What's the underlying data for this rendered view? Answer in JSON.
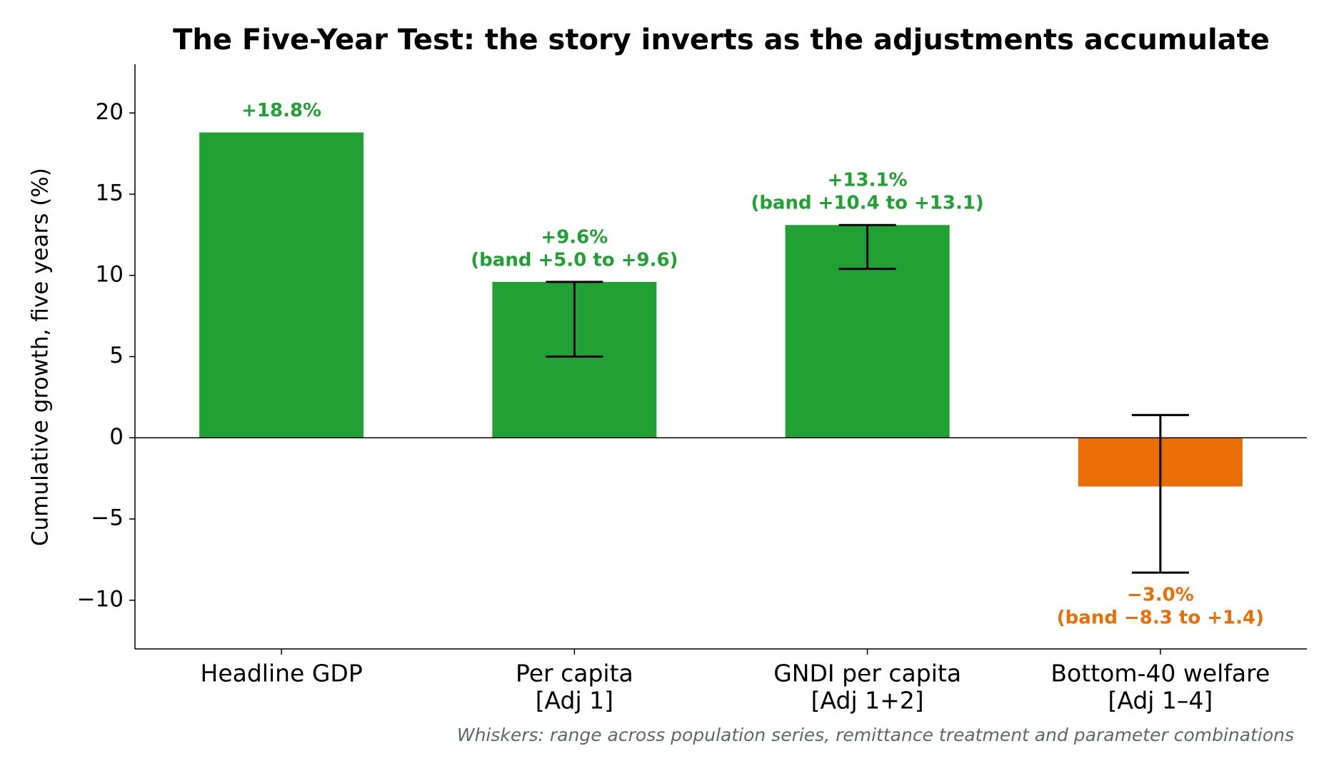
{
  "chart_data": {
    "type": "bar",
    "title": "The Five-Year Test: the story inverts as the adjustments accumulate",
    "y_label": "Cumulative growth, five years (%)",
    "footnote": "Whiskers: range across population series, remittance treatment and parameter combinations",
    "categories": [
      [
        "Headline GDP"
      ],
      [
        "Per capita",
        "[Adj 1]"
      ],
      [
        "GNDI per capita",
        "[Adj 1+2]"
      ],
      [
        "Bottom-40 welfare",
        "[Adj 1–4]"
      ]
    ],
    "values": [
      18.8,
      9.6,
      13.1,
      -3.0
    ],
    "value_labels": [
      "+18.8%",
      "+9.6%",
      "+13.1%",
      "−3.0%"
    ],
    "band_labels": [
      null,
      "(band +5.0 to +9.6)",
      "(band +10.4 to +13.1)",
      "(band −8.3 to +1.4)"
    ],
    "low": [
      null,
      5.0,
      10.4,
      -8.3
    ],
    "high": [
      null,
      9.6,
      13.1,
      1.4
    ],
    "colors": [
      "#21a033",
      "#21a033",
      "#21a033",
      "#ea6e05"
    ],
    "ylim": [
      -13,
      23
    ],
    "yticks": [
      {
        "value": -10,
        "label": "−10"
      },
      {
        "value": -5,
        "label": "−5"
      },
      0,
      5,
      10,
      15,
      20
    ]
  }
}
